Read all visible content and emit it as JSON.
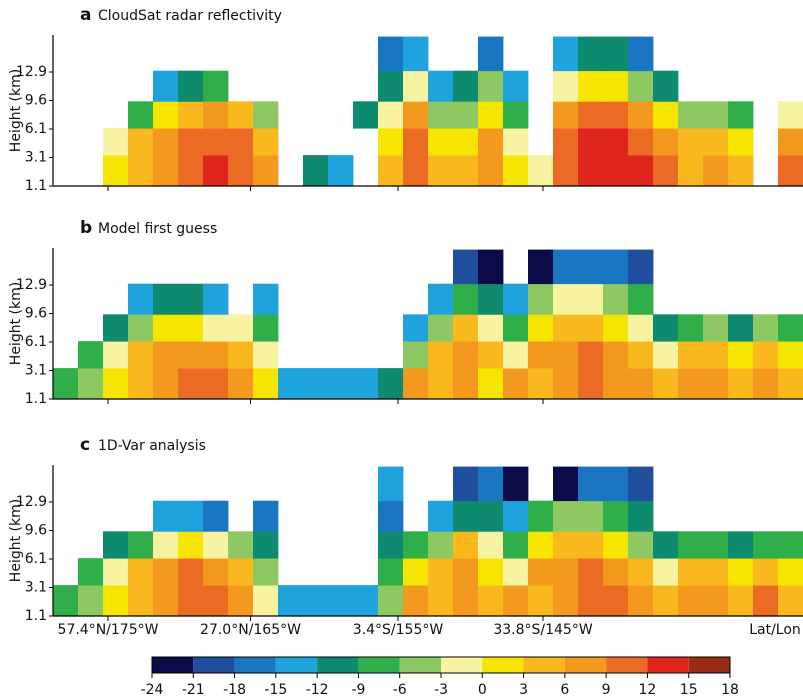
{
  "chart_data": [
    {
      "type": "heatmap",
      "label": "a",
      "title": "CloudSat radar reflectivity",
      "ylabel": "Height (km)",
      "xlim": [
        0,
        30
      ],
      "ylim": [
        1.1,
        17
      ],
      "yticks": [
        1.1,
        3.1,
        6.1,
        9.6,
        12.9
      ],
      "x": [
        0.5,
        1.5,
        2.5,
        3.5,
        4.5,
        5.5,
        6.5,
        7.5,
        8.5,
        9.5,
        10.5,
        11.5,
        12.5,
        13.5,
        14.5,
        15.5,
        16.5,
        17.5,
        18.5,
        19.5,
        20.5,
        21.5,
        22.5,
        23.5,
        24.5,
        25.5,
        26.5,
        27.5,
        28.5,
        29.5
      ],
      "y": [
        2.1,
        4.6,
        7.8,
        11.2,
        14.9
      ],
      "z": [
        [
          null,
          null,
          0,
          3,
          6,
          9,
          12,
          9,
          6,
          null,
          -12,
          -15,
          null,
          3,
          9,
          3,
          3,
          6,
          0,
          -3,
          9,
          12,
          12,
          12,
          9,
          3,
          6,
          3,
          null,
          9
        ],
        [
          null,
          null,
          -3,
          3,
          6,
          9,
          9,
          9,
          3,
          null,
          null,
          null,
          null,
          0,
          9,
          0,
          0,
          6,
          -3,
          null,
          9,
          12,
          12,
          9,
          6,
          3,
          3,
          0,
          null,
          6
        ],
        [
          null,
          null,
          null,
          -9,
          0,
          3,
          6,
          3,
          -6,
          null,
          null,
          null,
          -12,
          -3,
          6,
          -6,
          -6,
          0,
          -9,
          null,
          6,
          9,
          9,
          6,
          0,
          -6,
          -6,
          -9,
          null,
          -3
        ],
        [
          null,
          null,
          null,
          null,
          -15,
          -12,
          -9,
          null,
          null,
          null,
          null,
          null,
          null,
          -12,
          -3,
          -15,
          -12,
          -6,
          -15,
          null,
          -3,
          0,
          0,
          -6,
          -12,
          null,
          null,
          null,
          null,
          null
        ],
        [
          null,
          null,
          null,
          null,
          null,
          null,
          null,
          null,
          null,
          null,
          null,
          null,
          null,
          -18,
          -15,
          null,
          null,
          -18,
          null,
          null,
          -15,
          -12,
          -12,
          -18,
          null,
          null,
          null,
          null,
          null,
          null
        ]
      ]
    },
    {
      "type": "heatmap",
      "label": "b",
      "title": "Model first guess",
      "ylabel": "Height (km)",
      "xlim": [
        0,
        30
      ],
      "ylim": [
        1.1,
        17
      ],
      "yticks": [
        1.1,
        3.1,
        6.1,
        9.6,
        12.9
      ],
      "x": [
        0.5,
        1.5,
        2.5,
        3.5,
        4.5,
        5.5,
        6.5,
        7.5,
        8.5,
        9.5,
        10.5,
        11.5,
        12.5,
        13.5,
        14.5,
        15.5,
        16.5,
        17.5,
        18.5,
        19.5,
        20.5,
        21.5,
        22.5,
        23.5,
        24.5,
        25.5,
        26.5,
        27.5,
        28.5,
        29.5
      ],
      "y": [
        2.1,
        4.6,
        7.8,
        11.2,
        14.9
      ],
      "z": [
        [
          -9,
          -6,
          0,
          3,
          6,
          9,
          9,
          6,
          0,
          -15,
          -15,
          -15,
          -15,
          -12,
          6,
          3,
          6,
          0,
          6,
          3,
          6,
          9,
          6,
          6,
          3,
          6,
          6,
          3,
          6,
          3
        ],
        [
          null,
          -9,
          -3,
          3,
          6,
          6,
          6,
          3,
          -3,
          null,
          null,
          null,
          null,
          null,
          -6,
          3,
          6,
          3,
          -3,
          6,
          6,
          9,
          6,
          3,
          -3,
          3,
          3,
          0,
          3,
          0
        ],
        [
          null,
          null,
          -12,
          -6,
          0,
          0,
          -3,
          -3,
          -9,
          null,
          null,
          null,
          null,
          null,
          -15,
          -6,
          3,
          -3,
          -9,
          0,
          3,
          3,
          0,
          -3,
          -12,
          -9,
          -6,
          -12,
          -6,
          -9
        ],
        [
          null,
          null,
          null,
          -15,
          -12,
          -12,
          -15,
          null,
          -15,
          null,
          null,
          null,
          null,
          null,
          null,
          -15,
          -9,
          -12,
          -15,
          -6,
          -3,
          -3,
          -6,
          -9,
          null,
          null,
          null,
          null,
          null,
          null
        ],
        [
          null,
          null,
          null,
          null,
          null,
          null,
          null,
          null,
          null,
          null,
          null,
          null,
          null,
          null,
          null,
          null,
          -21,
          -24,
          null,
          -24,
          -18,
          -18,
          -18,
          -21,
          null,
          null,
          null,
          null,
          null,
          null
        ]
      ]
    },
    {
      "type": "heatmap",
      "label": "c",
      "title": "1D-Var analysis",
      "ylabel": "Height (km)",
      "xlabel": "Lat/Lon",
      "xlim": [
        0,
        30
      ],
      "ylim": [
        1.1,
        17
      ],
      "yticks": [
        1.1,
        3.1,
        6.1,
        9.6,
        12.9
      ],
      "xticks": [
        {
          "value": 2.2,
          "label": "57.4°N/175°W"
        },
        {
          "value": 7.9,
          "label": "27.0°N/165°W"
        },
        {
          "value": 13.8,
          "label": "3.4°S/155°W"
        },
        {
          "value": 19.6,
          "label": "33.8°S/145°W"
        }
      ],
      "x": [
        0.5,
        1.5,
        2.5,
        3.5,
        4.5,
        5.5,
        6.5,
        7.5,
        8.5,
        9.5,
        10.5,
        11.5,
        12.5,
        13.5,
        14.5,
        15.5,
        16.5,
        17.5,
        18.5,
        19.5,
        20.5,
        21.5,
        22.5,
        23.5,
        24.5,
        25.5,
        26.5,
        27.5,
        28.5,
        29.5
      ],
      "y": [
        2.1,
        4.6,
        7.8,
        11.2,
        14.9
      ],
      "z": [
        [
          -9,
          -6,
          0,
          3,
          6,
          9,
          9,
          6,
          -3,
          -15,
          -15,
          -15,
          -15,
          -6,
          6,
          3,
          6,
          3,
          6,
          3,
          6,
          9,
          9,
          6,
          3,
          6,
          6,
          3,
          9,
          3
        ],
        [
          null,
          -9,
          -3,
          3,
          6,
          9,
          6,
          3,
          -6,
          null,
          null,
          null,
          null,
          -9,
          0,
          3,
          6,
          0,
          -3,
          6,
          6,
          9,
          6,
          3,
          -3,
          3,
          3,
          0,
          3,
          0
        ],
        [
          null,
          null,
          -12,
          -9,
          -3,
          0,
          -3,
          -6,
          -12,
          null,
          null,
          null,
          null,
          -12,
          -9,
          -6,
          3,
          -3,
          -9,
          0,
          3,
          3,
          0,
          -6,
          -12,
          -9,
          -9,
          -12,
          -9,
          -9
        ],
        [
          null,
          null,
          null,
          null,
          -15,
          -15,
          -18,
          null,
          -18,
          null,
          null,
          null,
          null,
          -18,
          null,
          -15,
          -12,
          -12,
          -15,
          -9,
          -6,
          -6,
          -9,
          -12,
          null,
          null,
          null,
          null,
          null,
          null
        ],
        [
          null,
          null,
          null,
          null,
          null,
          null,
          null,
          null,
          null,
          null,
          null,
          null,
          null,
          -15,
          null,
          null,
          -21,
          -18,
          -24,
          null,
          -24,
          -18,
          -18,
          -21,
          null,
          null,
          null,
          null,
          null,
          null
        ]
      ]
    }
  ],
  "colorbar": {
    "bins": [
      -24,
      -21,
      -18,
      -15,
      -12,
      -9,
      -6,
      -3,
      0,
      3,
      6,
      9,
      12,
      15,
      18
    ],
    "colors": [
      "#0b0b4a",
      "#1e4e9c",
      "#1a76c0",
      "#1fa3dc",
      "#0e8a6e",
      "#2fae4a",
      "#8dc863",
      "#f7f3a0",
      "#f6e500",
      "#f8b81e",
      "#f39a1e",
      "#ec6b24",
      "#e0251f",
      "#9a2b16"
    ]
  }
}
